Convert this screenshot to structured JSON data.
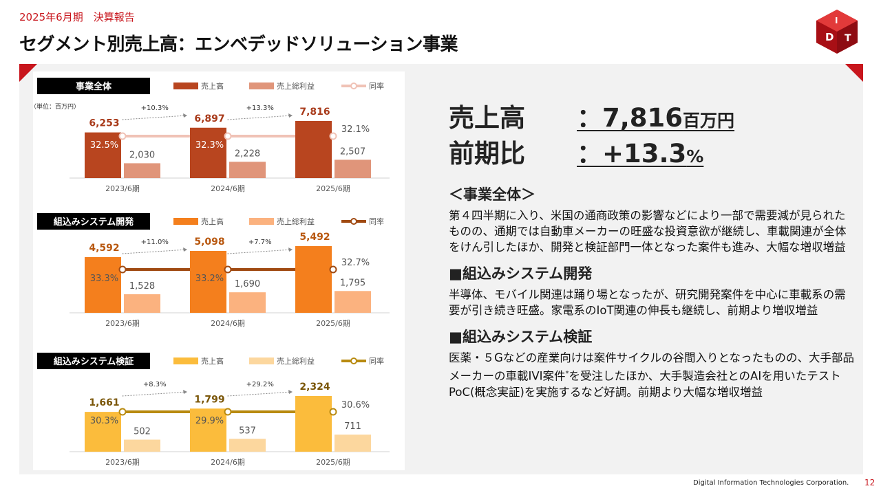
{
  "header": {
    "subtitle": "2025年6月期　決算報告",
    "title": "セグメント別売上高：エンベデッドソリューション事業"
  },
  "colors": {
    "brand_red": "#c8161d",
    "whole_sales": "#b8451f",
    "whole_gross": "#e0957a",
    "whole_rate": "#f0c2b6",
    "dev_sales": "#f47f1d",
    "dev_gross": "#fbb27f",
    "dev_rate": "#a04a12",
    "ver_sales": "#fbbc3c",
    "ver_gross": "#fcd79e",
    "ver_rate": "#b88a10",
    "sales_label_whole": "#a83a1a",
    "sales_label_dev": "#b8570e",
    "sales_label_ver": "#7a5608"
  },
  "unit_note": "（単位：百万円）",
  "legend": {
    "sales": "売上高",
    "gross": "売上総利益",
    "rate": "同率"
  },
  "chart_data": [
    {
      "type": "bar",
      "title": "事業全体",
      "categories": [
        "2023/6期",
        "2024/6期",
        "2025/6期"
      ],
      "series": [
        {
          "name": "売上高",
          "values": [
            6253,
            6897,
            7816
          ],
          "labels": [
            "6,253",
            "6,897",
            "7,816"
          ]
        },
        {
          "name": "売上総利益",
          "values": [
            2030,
            2228,
            2507
          ],
          "labels": [
            "2,030",
            "2,228",
            "2,507"
          ]
        },
        {
          "name": "同率",
          "values": [
            32.5,
            32.3,
            32.1
          ],
          "labels": [
            "32.5%",
            "32.3%",
            "32.1%"
          ]
        }
      ],
      "growth": [
        "+10.3%",
        "+13.3%"
      ],
      "ylim": [
        0,
        7816
      ]
    },
    {
      "type": "bar",
      "title": "組込みシステム開発",
      "categories": [
        "2023/6期",
        "2024/6期",
        "2025/6期"
      ],
      "series": [
        {
          "name": "売上高",
          "values": [
            4592,
            5098,
            5492
          ],
          "labels": [
            "4,592",
            "5,098",
            "5,492"
          ]
        },
        {
          "name": "売上総利益",
          "values": [
            1528,
            1690,
            1795
          ],
          "labels": [
            "1,528",
            "1,690",
            "1,795"
          ]
        },
        {
          "name": "同率",
          "values": [
            33.3,
            33.2,
            32.7
          ],
          "labels": [
            "33.3%",
            "33.2%",
            "32.7%"
          ]
        }
      ],
      "growth": [
        "+11.0%",
        "+7.7%"
      ],
      "ylim": [
        0,
        5492
      ]
    },
    {
      "type": "bar",
      "title": "組込みシステム検証",
      "categories": [
        "2023/6期",
        "2024/6期",
        "2025/6期"
      ],
      "series": [
        {
          "name": "売上高",
          "values": [
            1661,
            1799,
            2324
          ],
          "labels": [
            "1,661",
            "1,799",
            "2,324"
          ]
        },
        {
          "name": "売上総利益",
          "values": [
            502,
            537,
            711
          ],
          "labels": [
            "502",
            "537",
            "711"
          ]
        },
        {
          "name": "同率",
          "values": [
            30.3,
            29.9,
            30.6
          ],
          "labels": [
            "30.3%",
            "29.9%",
            "30.6%"
          ]
        }
      ],
      "growth": [
        "+8.3%",
        "+29.2%"
      ],
      "ylim": [
        0,
        2324
      ]
    }
  ],
  "summary": {
    "sales_label": "売上高",
    "sales_sep": "：",
    "sales_value": "7,816",
    "sales_unit": "百万円",
    "yoy_label": "前期比",
    "yoy_sep": "：",
    "yoy_value": "+13.3",
    "yoy_unit": "%"
  },
  "sections": [
    {
      "heading": "＜事業全体＞",
      "body": "第４四半期に入り、米国の通商政策の影響などにより一部で需要減が見られたものの、通期では自動車メーカーの旺盛な投資意欲が継続し、車載関連が全体をけん引したほか、開発と検証部門一体となった案件も進み、大幅な増収増益"
    },
    {
      "heading": "■組込みシステム開発",
      "body": "半導体、モバイル関連は踊り場となったが、研究開発案件を中心に車載系の需要が引き続き旺盛。家電系のIoT関連の伸長も継続し、前期より増収増益"
    },
    {
      "heading": "■組込みシステム検証",
      "body_pre": "医薬・５Gなどの産業向けは案件サイクルの谷間入りとなったものの、大手部品メーカーの車載IVI案件",
      "body_sup": "*",
      "body_post": "を受注したほか、大手製造会社とのAIを用いたテストPoC(概念実証)を実施するなど好調。前期より大幅な増収増益"
    }
  ],
  "footer": {
    "company": "Digital Information Technologies Corporation.",
    "page": "12"
  }
}
